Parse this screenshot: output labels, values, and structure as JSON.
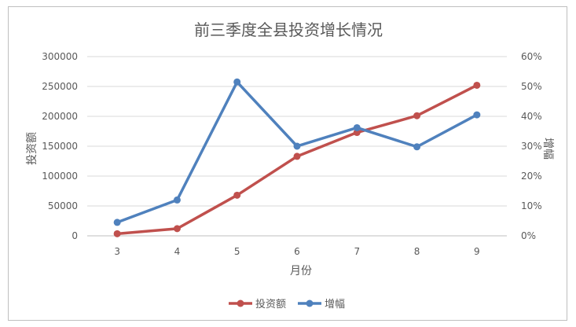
{
  "chart_data": {
    "type": "line",
    "title": "前三季度全县投资增长情况",
    "xlabel": "月份",
    "ylabel": "投资额",
    "y2label": "增幅",
    "categories": [
      "3",
      "4",
      "5",
      "6",
      "7",
      "8",
      "9"
    ],
    "ylim": [
      0,
      300000
    ],
    "y2lim": [
      0,
      0.6
    ],
    "y_ticks": [
      "0",
      "50000",
      "100000",
      "150000",
      "200000",
      "250000",
      "300000"
    ],
    "y2_ticks": [
      "0%",
      "10%",
      "20%",
      "30%",
      "40%",
      "50%",
      "60%"
    ],
    "grid": true,
    "legend_position": "bottom",
    "series": [
      {
        "name": "投资额",
        "axis": "left",
        "color": "#c0504d",
        "values": [
          3500,
          12000,
          68000,
          133000,
          173000,
          201000,
          252000
        ]
      },
      {
        "name": "增幅",
        "axis": "right",
        "color": "#4f81bd",
        "values": [
          0.045,
          0.12,
          0.515,
          0.3,
          0.362,
          0.298,
          0.405
        ]
      }
    ]
  }
}
